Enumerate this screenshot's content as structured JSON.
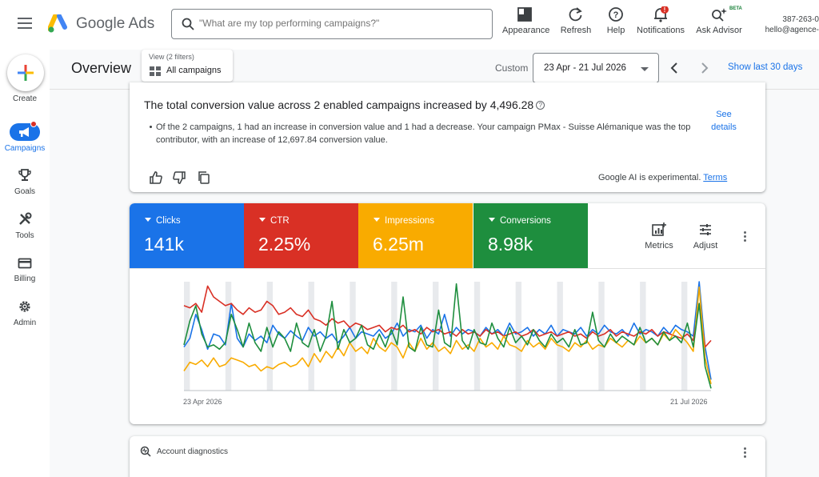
{
  "topbar": {
    "brand": "Google Ads",
    "search_placeholder": "\"What are my top performing campaigns?\"",
    "tools": [
      {
        "label": "Appearance",
        "icon": "appearance-icon"
      },
      {
        "label": "Refresh",
        "icon": "refresh-icon"
      },
      {
        "label": "Help",
        "icon": "help-icon"
      },
      {
        "label": "Notifications",
        "icon": "bell-icon",
        "badge": "!"
      },
      {
        "label": "Ask Advisor",
        "icon": "sparkle-search-icon",
        "badge": "BETA"
      }
    ],
    "account_id": "387-263-0",
    "account_email": "hello@agence-"
  },
  "leftnav": {
    "items": [
      {
        "label": "Create",
        "icon": "plus-icon"
      },
      {
        "label": "Campaigns",
        "icon": "megaphone-icon",
        "active": true
      },
      {
        "label": "Goals",
        "icon": "trophy-icon"
      },
      {
        "label": "Tools",
        "icon": "tools-icon"
      },
      {
        "label": "Billing",
        "icon": "credit-card-icon"
      },
      {
        "label": "Admin",
        "icon": "gear-icon"
      }
    ]
  },
  "header": {
    "title": "Overview",
    "filter_caption": "View (2 filters)",
    "filter_value": "All campaigns",
    "range_label": "Custom",
    "date_range": "23 Apr - 21 Jul 2026",
    "show_last": "Show last 30 days"
  },
  "insight": {
    "title": "The total conversion value across 2 enabled campaigns increased by 4,496.28",
    "bullet": "Of the 2 campaigns, 1 had an increase in conversion value and 1 had a decrease. Your campaign PMax - Suisse Alémanique was the top contributor, with an increase of 12,697.84 conversion value.",
    "see_details_line1": "See",
    "see_details_line2": "details",
    "ai_note": "Google AI is experimental.",
    "terms": "Terms"
  },
  "metrics": {
    "tiles": [
      {
        "label": "Clicks",
        "value": "141k",
        "color": "#1a73e8"
      },
      {
        "label": "CTR",
        "value": "2.25%",
        "color": "#d93025"
      },
      {
        "label": "Impressions",
        "value": "6.25m",
        "color": "#f9ab00"
      },
      {
        "label": "Conversions",
        "value": "8.98k",
        "color": "#1e8e3e"
      }
    ],
    "metrics_button": "Metrics",
    "adjust_button": "Adjust"
  },
  "chart_data": {
    "type": "line",
    "x_start_label": "23 Apr 2026",
    "x_end_label": "21 Jul 2026",
    "points": 90,
    "series": [
      {
        "name": "Clicks",
        "color": "#1a73e8",
        "values": [
          0.4,
          0.48,
          0.7,
          0.56,
          0.38,
          0.52,
          0.5,
          0.42,
          0.8,
          0.48,
          0.4,
          0.52,
          0.46,
          0.5,
          0.44,
          0.6,
          0.52,
          0.48,
          0.55,
          0.5,
          0.46,
          0.58,
          0.5,
          0.54,
          0.48,
          0.52,
          0.44,
          0.5,
          0.58,
          0.48,
          0.54,
          0.52,
          0.5,
          0.56,
          0.48,
          0.52,
          0.62,
          0.5,
          0.56,
          0.54,
          0.6,
          0.48,
          0.56,
          0.52,
          0.7,
          0.5,
          0.58,
          0.52,
          0.56,
          0.54,
          0.5,
          0.58,
          0.52,
          0.56,
          0.5,
          0.62,
          0.52,
          0.54,
          0.58,
          0.5,
          0.56,
          0.52,
          0.6,
          0.5,
          0.56,
          0.54,
          0.52,
          0.58,
          0.5,
          0.56,
          0.52,
          0.6,
          0.54,
          0.52,
          0.56,
          0.5,
          0.62,
          0.52,
          0.56,
          0.54,
          0.5,
          0.58,
          0.52,
          0.6,
          0.56,
          0.54,
          0.5,
          1.0,
          0.4,
          0.1
        ]
      },
      {
        "name": "CTR",
        "color": "#d93025",
        "values": [
          0.78,
          0.76,
          0.8,
          0.72,
          0.96,
          0.86,
          0.82,
          0.78,
          0.8,
          0.74,
          0.7,
          0.76,
          0.72,
          0.74,
          0.82,
          0.78,
          0.7,
          0.72,
          0.76,
          0.7,
          0.68,
          0.74,
          0.66,
          0.64,
          0.6,
          0.66,
          0.62,
          0.64,
          0.58,
          0.62,
          0.6,
          0.56,
          0.58,
          0.6,
          0.54,
          0.58,
          0.56,
          0.6,
          0.54,
          0.56,
          0.52,
          0.58,
          0.54,
          0.56,
          0.52,
          0.54,
          0.5,
          0.56,
          0.52,
          0.54,
          0.5,
          0.56,
          0.52,
          0.54,
          0.5,
          0.52,
          0.54,
          0.5,
          0.52,
          0.56,
          0.5,
          0.52,
          0.54,
          0.5,
          0.52,
          0.54,
          0.5,
          0.52,
          0.48,
          0.54,
          0.5,
          0.52,
          0.56,
          0.5,
          0.54,
          0.52,
          0.5,
          0.54,
          0.52,
          0.56,
          0.5,
          0.54,
          0.52,
          0.5,
          0.48,
          0.52,
          0.46,
          0.8,
          0.4,
          0.46
        ]
      },
      {
        "name": "Impressions",
        "color": "#f9ab00",
        "values": [
          0.18,
          0.26,
          0.24,
          0.28,
          0.22,
          0.3,
          0.22,
          0.24,
          0.3,
          0.28,
          0.26,
          0.22,
          0.24,
          0.18,
          0.22,
          0.2,
          0.24,
          0.26,
          0.22,
          0.24,
          0.3,
          0.22,
          0.34,
          0.26,
          0.36,
          0.3,
          0.4,
          0.32,
          0.44,
          0.36,
          0.4,
          0.34,
          0.48,
          0.4,
          0.36,
          0.44,
          0.4,
          0.3,
          0.44,
          0.36,
          0.48,
          0.38,
          0.44,
          0.36,
          0.4,
          0.34,
          0.46,
          0.38,
          0.42,
          0.36,
          0.48,
          0.4,
          0.44,
          0.38,
          0.5,
          0.42,
          0.4,
          0.36,
          0.46,
          0.4,
          0.44,
          0.38,
          0.48,
          0.42,
          0.4,
          0.36,
          0.44,
          0.4,
          0.46,
          0.38,
          0.42,
          0.4,
          0.48,
          0.44,
          0.4,
          0.46,
          0.42,
          0.5,
          0.44,
          0.48,
          0.42,
          0.52,
          0.46,
          0.56,
          0.5,
          0.44,
          0.36,
          0.95,
          0.3,
          0.06
        ]
      },
      {
        "name": "Conversions",
        "color": "#1e8e3e",
        "values": [
          0.42,
          0.64,
          0.78,
          0.52,
          0.4,
          0.42,
          0.38,
          0.44,
          0.7,
          0.56,
          0.4,
          0.62,
          0.44,
          0.36,
          0.58,
          0.4,
          0.54,
          0.48,
          0.36,
          0.62,
          0.44,
          0.4,
          0.56,
          0.36,
          0.5,
          0.82,
          0.38,
          0.56,
          0.44,
          0.48,
          0.6,
          0.42,
          0.38,
          0.52,
          0.4,
          0.56,
          0.42,
          0.86,
          0.4,
          0.36,
          0.58,
          0.42,
          0.4,
          0.74,
          0.44,
          0.4,
          0.98,
          0.46,
          0.38,
          0.56,
          0.44,
          0.42,
          0.62,
          0.48,
          0.4,
          0.58,
          0.44,
          0.5,
          0.42,
          0.56,
          0.46,
          0.4,
          0.52,
          0.44,
          0.48,
          0.4,
          0.56,
          0.42,
          0.44,
          0.72,
          0.46,
          0.4,
          0.52,
          0.44,
          0.5,
          0.46,
          0.42,
          0.58,
          0.44,
          0.48,
          0.42,
          0.54,
          0.46,
          0.5,
          0.44,
          0.62,
          0.4,
          0.8,
          0.22,
          0.02
        ]
      }
    ]
  },
  "diagnostics": {
    "title": "Account diagnostics"
  }
}
